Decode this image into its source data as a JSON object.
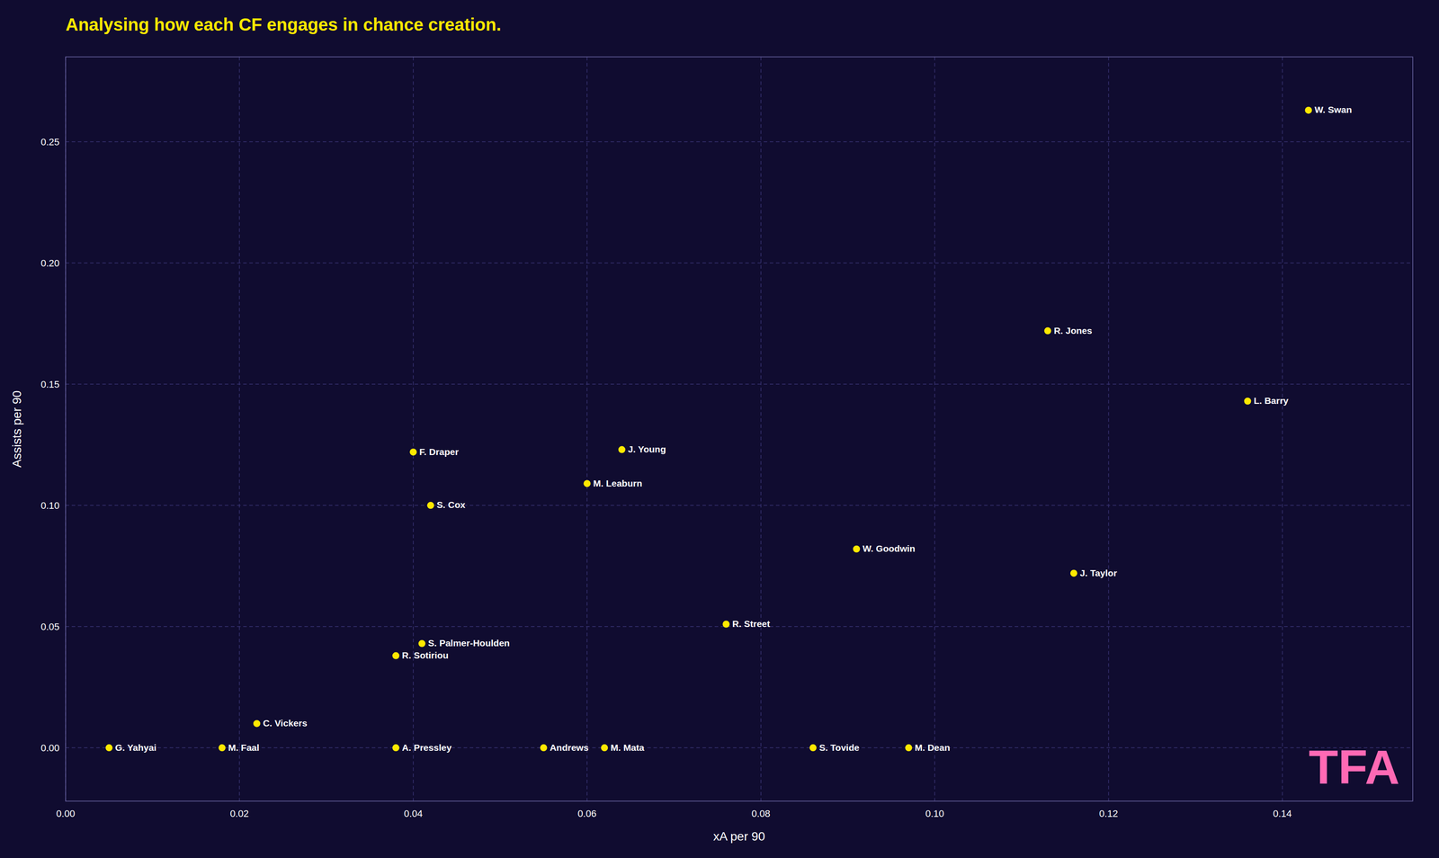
{
  "chart_data": {
    "type": "scatter",
    "title": "Analysing how each CF engages in chance creation.",
    "xlabel": "xA per 90",
    "ylabel": "Assists per 90",
    "color": "#FFE800",
    "grid": true,
    "xlim": [
      0.0,
      0.155
    ],
    "ylim": [
      -0.022,
      0.285
    ],
    "xticks": [
      {
        "value": 0,
        "label": "0.00"
      },
      0.02,
      0.04,
      0.06,
      0.08,
      {
        "value": 0.1,
        "label": "0.10"
      },
      0.12,
      0.14
    ],
    "yticks": [
      {
        "value": 0,
        "label": "0.00"
      },
      0.05,
      {
        "value": 0.1,
        "label": "0.10"
      },
      0.15,
      {
        "value": 0.2,
        "label": "0.20"
      },
      0.25
    ],
    "labels": [
      "G. Yahyai",
      "M. Faal",
      "C. Vickers",
      "A. Pressley",
      "R. Sotiriou",
      "S. Palmer-Houlden",
      "F. Draper",
      "S. Cox",
      "Andrews",
      "M. Mata",
      "M. Leaburn",
      "J. Young",
      "R. Street",
      "S. Tovide",
      "M. Dean",
      "W. Goodwin",
      "J. Taylor",
      "R. Jones",
      "L. Barry",
      "W. Swan"
    ],
    "x": [
      0.005,
      0.018,
      0.022,
      0.038,
      0.038,
      0.041,
      0.04,
      0.042,
      0.055,
      0.062,
      0.06,
      0.064,
      0.076,
      0.086,
      0.097,
      0.091,
      0.116,
      0.113,
      0.136,
      0.143
    ],
    "values": [
      0.0,
      0.0,
      0.01,
      0.0,
      0.038,
      0.043,
      0.122,
      0.1,
      0.0,
      0.0,
      0.109,
      0.123,
      0.051,
      0.0,
      0.0,
      0.082,
      0.072,
      0.172,
      0.143,
      0.263
    ],
    "annotations": [
      {
        "text": "TFA"
      }
    ]
  }
}
